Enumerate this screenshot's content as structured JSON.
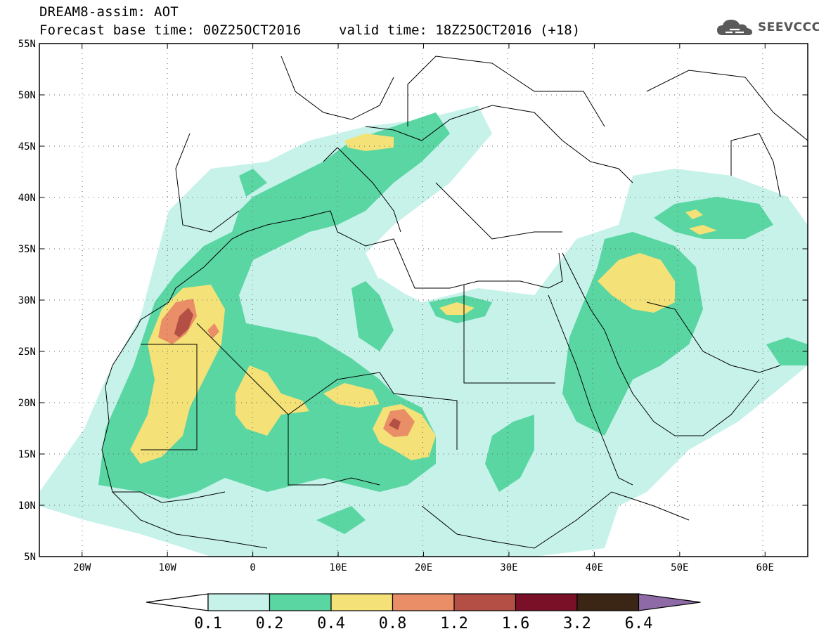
{
  "header": {
    "title": "DREAM8-assim: AOT",
    "base_time": "Forecast base time: 00Z25OCT2016",
    "valid_time": "valid time: 18Z25OCT2016 (+18)"
  },
  "logo": {
    "text": "SEEVCCC",
    "icon": "cloud-icon"
  },
  "axes": {
    "lat_labels": [
      "55N",
      "50N",
      "45N",
      "40N",
      "35N",
      "30N",
      "25N",
      "20N",
      "15N",
      "10N",
      "5N"
    ],
    "lon_labels": [
      "20W",
      "10W",
      "0",
      "10E",
      "20E",
      "30E",
      "40E",
      "50E",
      "60E"
    ],
    "lat_range": [
      5,
      55
    ],
    "lon_range": [
      -25,
      65
    ]
  },
  "colorbar": {
    "labels": [
      "0.1",
      "0.2",
      "0.4",
      "0.8",
      "1.2",
      "1.6",
      "3.2",
      "6.4"
    ],
    "colors": [
      "#c6f2ea",
      "#5ad6a3",
      "#f4e278",
      "#e98e67",
      "#b34f45",
      "#7a0f28",
      "#3b2616",
      "#8e6aa6"
    ],
    "under_color": "#ffffff"
  },
  "palette": {
    "ocean": "#ffffff",
    "border": "#000000",
    "grid": "#555555"
  }
}
